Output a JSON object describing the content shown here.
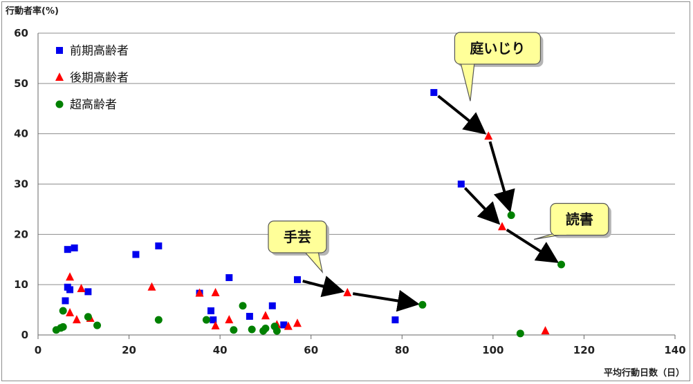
{
  "chart_data": {
    "type": "scatter",
    "ylabel": "行動者率(%)",
    "xlabel": "平均行動日数（日）",
    "xlim": [
      0,
      140
    ],
    "ylim": [
      0,
      60
    ],
    "x_ticks": [
      "0",
      "20",
      "40",
      "60",
      "80",
      "100",
      "120",
      "140"
    ],
    "y_ticks": [
      "0",
      "10",
      "20",
      "30",
      "40",
      "50",
      "60"
    ],
    "grid": "horizontal",
    "legend_position": "top-left",
    "series": [
      {
        "name": "前期高齢者",
        "marker": "square",
        "color": "#0000ee",
        "points": [
          [
            6.5,
            17
          ],
          [
            8,
            17.3
          ],
          [
            26.5,
            17.7
          ],
          [
            21.5,
            16
          ],
          [
            6.5,
            9.5
          ],
          [
            7,
            9
          ],
          [
            11,
            8.6
          ],
          [
            6,
            6.8
          ],
          [
            35.5,
            8.3
          ],
          [
            42,
            11.4
          ],
          [
            38,
            4.8
          ],
          [
            38.5,
            3
          ],
          [
            46.5,
            3.7
          ],
          [
            51.5,
            5.8
          ],
          [
            54,
            2
          ],
          [
            57,
            11
          ],
          [
            78.5,
            3
          ],
          [
            87,
            48.2
          ],
          [
            93,
            30
          ]
        ]
      },
      {
        "name": "後期高齢者",
        "marker": "triangle",
        "color": "#ff0000",
        "points": [
          [
            7,
            11.5
          ],
          [
            9.5,
            9.2
          ],
          [
            7,
            4.4
          ],
          [
            8.5,
            3
          ],
          [
            11.5,
            3.3
          ],
          [
            25,
            9.5
          ],
          [
            35.5,
            8.3
          ],
          [
            39,
            8.4
          ],
          [
            39,
            1.8
          ],
          [
            42,
            3
          ],
          [
            50,
            3.8
          ],
          [
            52.5,
            2
          ],
          [
            55,
            1.7
          ],
          [
            57,
            2.3
          ],
          [
            68,
            8.4
          ],
          [
            99,
            39.5
          ],
          [
            102,
            21.5
          ],
          [
            111.5,
            0.8
          ]
        ]
      },
      {
        "name": "超高齢者",
        "marker": "circle",
        "color": "#008000",
        "points": [
          [
            4,
            1
          ],
          [
            5,
            1.4
          ],
          [
            5.5,
            4.8
          ],
          [
            5.5,
            1.6
          ],
          [
            11,
            3.6
          ],
          [
            13,
            1.9
          ],
          [
            26.5,
            3
          ],
          [
            37,
            3
          ],
          [
            43,
            1
          ],
          [
            45,
            5.8
          ],
          [
            47,
            1.1
          ],
          [
            49.5,
            0.8
          ],
          [
            50,
            1.3
          ],
          [
            52,
            1.7
          ],
          [
            52.5,
            0.8
          ],
          [
            84.5,
            6
          ],
          [
            104,
            23.8
          ],
          [
            106,
            0.3
          ],
          [
            115,
            14
          ]
        ]
      }
    ],
    "annotations": [
      {
        "text": "庭いじり",
        "box": [
          101,
          57
        ],
        "tip": [
          95,
          46.5
        ],
        "path": [
          [
            87,
            48.2
          ],
          [
            99,
            39.5
          ],
          [
            104,
            23.8
          ]
        ]
      },
      {
        "text": "読書",
        "box": [
          119,
          23
        ],
        "tip": [
          109,
          19
        ],
        "path": [
          [
            93,
            30
          ],
          [
            102,
            21.5
          ],
          [
            115,
            14
          ]
        ]
      },
      {
        "text": "手芸",
        "box": [
          57,
          19.5
        ],
        "tip": [
          62.5,
          12.5
        ],
        "path": [
          [
            57,
            11
          ],
          [
            68,
            8.4
          ],
          [
            84.5,
            6
          ]
        ]
      }
    ]
  }
}
